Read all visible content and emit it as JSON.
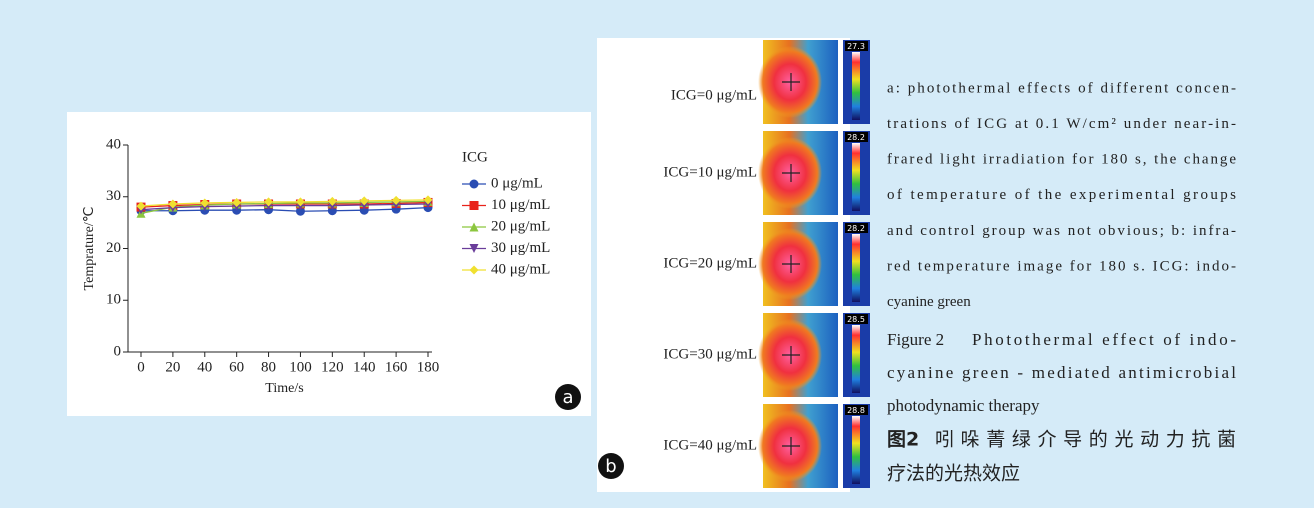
{
  "chart_data": {
    "type": "line",
    "xlabel": "Time/s",
    "ylabel": "Temprature/℃",
    "legend_title": "ICG",
    "panel_label": "a",
    "x": [
      0,
      20,
      40,
      60,
      80,
      100,
      120,
      140,
      160,
      180
    ],
    "xlim": [
      0,
      180
    ],
    "xticks": [
      0,
      20,
      40,
      60,
      80,
      100,
      120,
      140,
      160,
      180
    ],
    "ylim": [
      0,
      40
    ],
    "yticks": [
      0,
      10,
      20,
      30,
      40
    ],
    "series": [
      {
        "name": "0 μg/mL",
        "color": "#2a4db3",
        "marker": "circle",
        "values": [
          27.3,
          27.3,
          27.4,
          27.4,
          27.5,
          27.2,
          27.3,
          27.4,
          27.6,
          27.9
        ]
      },
      {
        "name": "10 μg/mL",
        "color": "#e8231b",
        "marker": "square",
        "values": [
          28.0,
          28.3,
          28.5,
          28.6,
          28.6,
          28.6,
          28.6,
          28.6,
          28.7,
          28.9
        ]
      },
      {
        "name": "20 μg/mL",
        "color": "#8cc63f",
        "marker": "triangle-up",
        "values": [
          26.8,
          28.0,
          28.4,
          28.6,
          28.7,
          28.8,
          28.8,
          28.9,
          29.0,
          29.1
        ]
      },
      {
        "name": "30 μg/mL",
        "color": "#6a3d9a",
        "marker": "triangle-down",
        "values": [
          27.5,
          27.9,
          28.1,
          28.2,
          28.3,
          28.3,
          28.3,
          28.4,
          28.5,
          28.6
        ]
      },
      {
        "name": "40 μg/mL",
        "color": "#f0e030",
        "marker": "diamond",
        "values": [
          28.2,
          28.6,
          28.8,
          28.9,
          29.0,
          29.0,
          29.1,
          29.2,
          29.3,
          29.4
        ]
      }
    ]
  },
  "panel_b": {
    "panel_label": "b",
    "rows": [
      {
        "label": "ICG=0 μg/mL",
        "scale_max": "27.3"
      },
      {
        "label": "ICG=10 μg/mL",
        "scale_max": "28.2"
      },
      {
        "label": "ICG=20 μg/mL",
        "scale_max": "28.2"
      },
      {
        "label": "ICG=30 μg/mL",
        "scale_max": "28.5"
      },
      {
        "label": "ICG=40 μg/mL",
        "scale_max": "28.8"
      }
    ]
  },
  "caption": {
    "notes": [
      "a: photothermal effects of different concen-",
      "trations of ICG at 0.1 W/cm² under near-in-",
      "frared light irradiation for 180 s, the change",
      "of temperature of the experimental groups",
      "and control group was not obvious; b: infra-",
      "red temperature image for 180 s. ICG: indo-",
      "cyanine green"
    ],
    "en_label": "Figure 2",
    "en_lines": [
      "Photothermal effect of indo-",
      "cyanine green - mediated antimicrobial",
      "photodynamic therapy"
    ],
    "cn_label": "图2",
    "cn_lines": [
      "吲哚菁绿介导的光动力抗菌",
      "疗法的光热效应"
    ]
  }
}
